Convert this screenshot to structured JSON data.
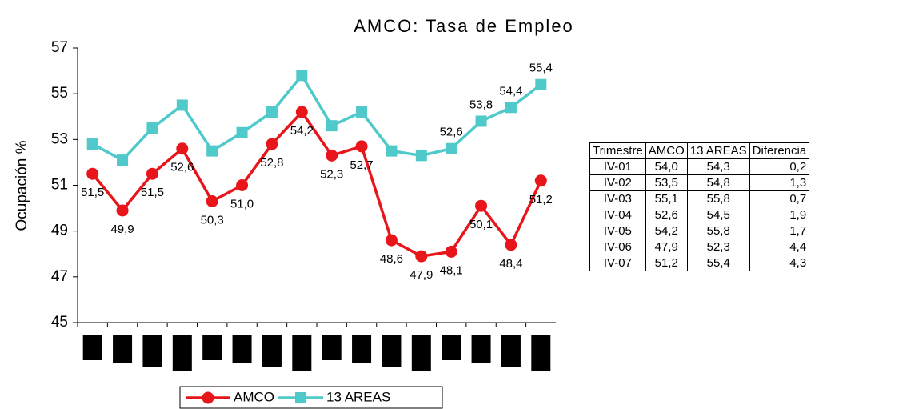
{
  "chart_data": {
    "type": "line",
    "title": "AMCO: Tasa de Empleo",
    "y_label": "Ocupación %",
    "categories": [
      null,
      null,
      null,
      null,
      null,
      null,
      null,
      null,
      null,
      null,
      null,
      null,
      null,
      null,
      null,
      null
    ],
    "series": [
      {
        "name": "AMCO",
        "color": "#e8161b",
        "marker": "circle",
        "values": [
          51.5,
          49.9,
          51.5,
          52.6,
          50.3,
          51.0,
          52.8,
          54.2,
          52.3,
          52.7,
          48.6,
          47.9,
          48.1,
          50.1,
          48.4,
          51.2
        ],
        "value_labels": [
          "51,5",
          "49,9",
          "51,5",
          "52,6",
          "50,3",
          "51,0",
          "52,8",
          "54,2",
          "52,3",
          "52,7",
          "48,6",
          "47,9",
          "48,1",
          "50,1",
          "48,4",
          "51,2"
        ]
      },
      {
        "name": "13 AREAS",
        "color": "#4fc9c9",
        "marker": "square",
        "values": [
          52.8,
          52.1,
          53.5,
          54.5,
          52.5,
          53.3,
          54.2,
          55.8,
          53.6,
          54.2,
          52.5,
          52.3,
          52.6,
          53.8,
          54.4,
          55.4
        ],
        "value_labels": [
          null,
          null,
          null,
          null,
          null,
          null,
          null,
          null,
          null,
          null,
          null,
          null,
          "52,6",
          "53,8",
          "54,4",
          "55,4"
        ]
      }
    ],
    "ylim": [
      45,
      57
    ],
    "yticks": [
      45,
      47,
      49,
      51,
      53,
      55,
      57
    ],
    "grid": false,
    "legend": "bottom"
  },
  "table": {
    "header": [
      "Trimestre",
      "AMCO",
      "13 AREAS",
      "Diferencia"
    ],
    "rows": [
      [
        "IV-01",
        "54,0",
        "54,3",
        "0,2"
      ],
      [
        "IV-02",
        "53,5",
        "54,8",
        "1,3"
      ],
      [
        "IV-03",
        "55,1",
        "55,8",
        "0,7"
      ],
      [
        "IV-04",
        "52,6",
        "54,5",
        "1,9"
      ],
      [
        "IV-05",
        "54,2",
        "55,8",
        "1,7"
      ],
      [
        "IV-06",
        "47,9",
        "52,3",
        "4,4"
      ],
      [
        "IV-07",
        "51,2",
        "55,4",
        "4,3"
      ]
    ]
  }
}
